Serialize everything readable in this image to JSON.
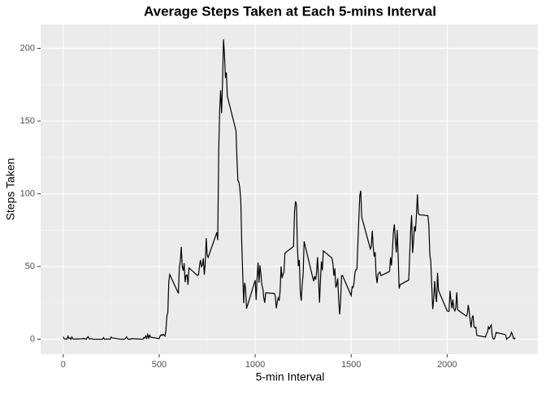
{
  "chart_data": {
    "type": "line",
    "title": "Average Steps Taken at Each 5-mins Interval",
    "xlabel": "5-min Interval",
    "ylabel": "Steps Taken",
    "x": [
      0,
      5,
      10,
      15,
      20,
      25,
      30,
      35,
      40,
      45,
      50,
      55,
      100,
      105,
      110,
      115,
      120,
      125,
      130,
      135,
      140,
      145,
      150,
      155,
      200,
      205,
      210,
      215,
      220,
      225,
      230,
      235,
      240,
      245,
      250,
      255,
      300,
      305,
      310,
      315,
      320,
      325,
      330,
      335,
      340,
      345,
      350,
      355,
      400,
      405,
      410,
      415,
      420,
      425,
      430,
      435,
      440,
      445,
      450,
      455,
      500,
      505,
      510,
      515,
      520,
      525,
      530,
      535,
      540,
      545,
      550,
      555,
      600,
      605,
      610,
      615,
      620,
      625,
      630,
      635,
      640,
      645,
      650,
      655,
      700,
      705,
      710,
      715,
      720,
      725,
      730,
      735,
      740,
      745,
      750,
      755,
      800,
      805,
      810,
      815,
      820,
      825,
      830,
      835,
      840,
      845,
      850,
      855,
      900,
      905,
      910,
      915,
      920,
      925,
      930,
      935,
      940,
      945,
      950,
      955,
      1000,
      1005,
      1010,
      1015,
      1020,
      1025,
      1030,
      1035,
      1040,
      1045,
      1050,
      1055,
      1100,
      1105,
      1110,
      1115,
      1120,
      1125,
      1130,
      1135,
      1140,
      1145,
      1150,
      1155,
      1200,
      1205,
      1210,
      1215,
      1220,
      1225,
      1230,
      1235,
      1240,
      1245,
      1250,
      1255,
      1300,
      1305,
      1310,
      1315,
      1320,
      1325,
      1330,
      1335,
      1340,
      1345,
      1350,
      1355,
      1400,
      1405,
      1410,
      1415,
      1420,
      1425,
      1430,
      1435,
      1440,
      1445,
      1450,
      1455,
      1500,
      1505,
      1510,
      1515,
      1520,
      1525,
      1530,
      1535,
      1540,
      1545,
      1550,
      1555,
      1600,
      1605,
      1610,
      1615,
      1620,
      1625,
      1630,
      1635,
      1640,
      1645,
      1650,
      1655,
      1700,
      1705,
      1710,
      1715,
      1720,
      1725,
      1730,
      1735,
      1740,
      1745,
      1750,
      1755,
      1800,
      1805,
      1810,
      1815,
      1820,
      1825,
      1830,
      1835,
      1840,
      1845,
      1850,
      1855,
      1900,
      1905,
      1910,
      1915,
      1920,
      1925,
      1930,
      1935,
      1940,
      1945,
      1950,
      1955,
      2000,
      2005,
      2010,
      2015,
      2020,
      2025,
      2030,
      2035,
      2040,
      2045,
      2050,
      2055,
      2100,
      2105,
      2110,
      2115,
      2120,
      2125,
      2130,
      2135,
      2140,
      2145,
      2150,
      2155,
      2200,
      2205,
      2210,
      2215,
      2220,
      2225,
      2230,
      2235,
      2240,
      2245,
      2250,
      2255,
      2300,
      2305,
      2310,
      2315,
      2320,
      2325,
      2330,
      2335,
      2340,
      2345,
      2350,
      2355
    ],
    "series": [
      {
        "color": "#000000",
        "values": [
          1.7,
          0.3,
          0.1,
          0.2,
          0.1,
          2.1,
          0.5,
          0.9,
          0,
          1.5,
          0.3,
          0.1,
          0.3,
          0.7,
          0.2,
          0.3,
          0,
          1.1,
          1.8,
          0.2,
          0.2,
          0.4,
          0.3,
          0,
          0,
          0,
          1.1,
          0,
          0,
          0.1,
          0,
          0.2,
          0,
          0,
          1.5,
          0.9,
          0,
          0,
          0,
          0,
          0,
          0.6,
          1.6,
          0.5,
          0,
          0.1,
          0,
          0.4,
          0.1,
          0,
          0,
          0,
          1.2,
          0.7,
          2.3,
          0.7,
          3.2,
          0.8,
          2.8,
          1.4,
          0.4,
          2.3,
          3.1,
          2.5,
          3.3,
          3.0,
          2.1,
          6.1,
          16.0,
          18.3,
          39.5,
          44.5,
          31.5,
          49.3,
          53.8,
          63.5,
          50.0,
          47.1,
          52.2,
          39.3,
          44.0,
          44.2,
          37.4,
          49.0,
          43.8,
          44.4,
          50.5,
          54.5,
          49.9,
          50.9,
          55.7,
          44.3,
          52.3,
          69.5,
          57.8,
          56.2,
          73.4,
          68.2,
          129.4,
          157.5,
          171.2,
          155.4,
          177.3,
          206.2,
          195.9,
          179.6,
          183.4,
          167.0,
          143.5,
          124.0,
          109.1,
          108.1,
          103.7,
          95.9,
          66.2,
          45.2,
          24.8,
          38.8,
          35.0,
          21.1,
          40.6,
          27.0,
          42.4,
          52.7,
          38.9,
          50.8,
          44.3,
          37.4,
          34.7,
          28.3,
          25.1,
          31.9,
          31.4,
          29.7,
          21.3,
          25.5,
          28.4,
          26.5,
          33.4,
          50.0,
          42.0,
          44.6,
          46.0,
          59.2,
          63.9,
          87.7,
          94.8,
          92.8,
          63.4,
          50.2,
          54.5,
          32.4,
          26.5,
          37.7,
          45.1,
          67.3,
          42.3,
          39.9,
          43.3,
          41.0,
          46.2,
          56.4,
          42.8,
          25.1,
          40.0,
          53.5,
          47.4,
          60.8,
          55.8,
          52.0,
          43.6,
          48.7,
          35.5,
          37.5,
          41.8,
          27.5,
          17.1,
          26.1,
          43.6,
          43.8,
          30.0,
          36.1,
          35.5,
          38.8,
          46.0,
          47.8,
          48.1,
          65.3,
          82.9,
          98.7,
          102.1,
          84.0,
          62.1,
          64.1,
          74.5,
          63.2,
          56.9,
          59.8,
          43.9,
          38.6,
          44.7,
          45.5,
          46.2,
          43.7,
          46.6,
          56.3,
          50.7,
          61.2,
          73.4,
          79.0,
          68.9,
          59.7,
          75.1,
          56.5,
          34.8,
          37.5,
          40.7,
          58.0,
          74.7,
          85.3,
          59.3,
          67.8,
          77.7,
          74.2,
          85.3,
          99.5,
          86.6,
          85.6,
          84.9,
          77.8,
          58.0,
          53.4,
          36.3,
          20.7,
          27.4,
          40.0,
          30.2,
          25.5,
          45.7,
          33.5,
          19.6,
          19.0,
          19.3,
          33.3,
          26.8,
          21.2,
          27.3,
          21.3,
          19.5,
          21.3,
          32.3,
          20.2,
          15.9,
          17.2,
          23.5,
          19.2,
          12.5,
          8.0,
          14.7,
          16.3,
          8.7,
          7.8,
          8.1,
          2.6,
          1.5,
          3.7,
          4.8,
          8.5,
          7.1,
          8.7,
          9.8,
          2.2,
          0.3,
          0.1,
          1.6,
          4.6,
          3.3,
          2.8,
          0,
          0.8,
          1.0,
          1.6,
          2.6,
          4.7,
          3.3,
          0.6,
          0.2,
          1.1
        ]
      }
    ],
    "xlim": [
      -117.75,
      2472.75
    ],
    "ylim": [
      -10.3,
      216.5
    ],
    "xticks": [
      0,
      500,
      1000,
      1500,
      2000
    ],
    "yticks": [
      0,
      50,
      100,
      150,
      200
    ],
    "grid": true
  }
}
